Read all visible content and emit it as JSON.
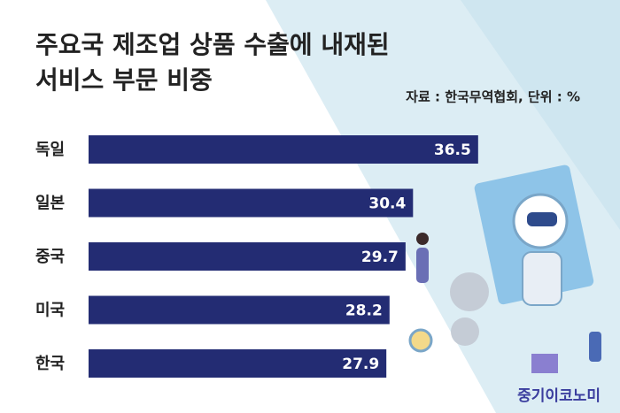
{
  "chart_data": {
    "type": "bar",
    "orientation": "horizontal",
    "title": [
      "주요국 제조업 상품 수출에 내재된",
      "서비스 부문 비중"
    ],
    "source": "자료 : 한국무역협회, 단위 : %",
    "categories": [
      "독일",
      "일본",
      "중국",
      "미국",
      "한국"
    ],
    "values": [
      36.5,
      30.4,
      29.7,
      28.2,
      27.9
    ],
    "color": "#232c73",
    "logo": "중기이코노미"
  }
}
